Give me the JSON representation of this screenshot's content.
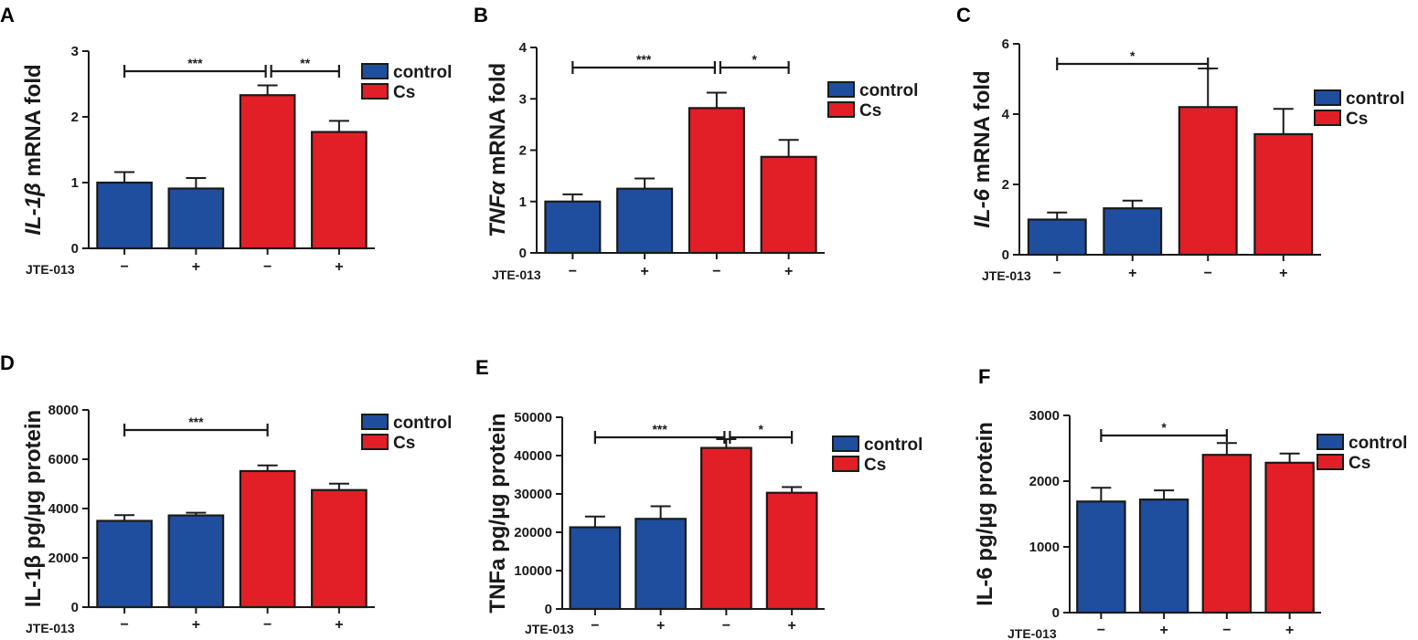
{
  "colors": {
    "control": "#1f4e9e",
    "cs": "#e21f26"
  },
  "legend": [
    "control",
    "Cs"
  ],
  "treatment_label": "JTE-013",
  "treatment_marks": [
    "−",
    "+",
    "−",
    "+"
  ],
  "chart_data": [
    {
      "panel": "A",
      "type": "bar",
      "ylabel": {
        "italic": "IL-1β",
        "rest": " mRNA fold"
      },
      "ylim": [
        0,
        3
      ],
      "yticks": [
        0,
        1,
        2,
        3
      ],
      "groups": [
        "control",
        "control",
        "Cs",
        "Cs"
      ],
      "values": [
        1.0,
        0.91,
        2.33,
        1.77
      ],
      "errors": [
        0.16,
        0.16,
        0.15,
        0.17
      ],
      "significance": [
        {
          "from": 0,
          "to": 2,
          "label": "***"
        },
        {
          "from": 2,
          "to": 3,
          "label": "**"
        }
      ]
    },
    {
      "panel": "B",
      "type": "bar",
      "ylabel": {
        "italic": "TNFα",
        "rest": " mRNA fold"
      },
      "ylim": [
        0,
        4
      ],
      "yticks": [
        0,
        1,
        2,
        3,
        4
      ],
      "groups": [
        "control",
        "control",
        "Cs",
        "Cs"
      ],
      "values": [
        1.0,
        1.25,
        2.82,
        1.87
      ],
      "errors": [
        0.14,
        0.2,
        0.3,
        0.33
      ],
      "significance": [
        {
          "from": 0,
          "to": 2,
          "label": "***"
        },
        {
          "from": 2,
          "to": 3,
          "label": "*"
        }
      ]
    },
    {
      "panel": "C",
      "type": "bar",
      "ylabel": {
        "italic": "IL-6",
        "rest": " mRNA fold"
      },
      "ylim": [
        0,
        6
      ],
      "yticks": [
        0,
        2,
        4,
        6
      ],
      "groups": [
        "control",
        "control",
        "Cs",
        "Cs"
      ],
      "values": [
        1.0,
        1.32,
        4.2,
        3.43
      ],
      "errors": [
        0.2,
        0.22,
        1.1,
        0.72
      ],
      "significance": [
        {
          "from": 0,
          "to": 2,
          "label": "*"
        }
      ]
    },
    {
      "panel": "D",
      "type": "bar",
      "ylabel": {
        "italic": "",
        "rest": "IL-1β pg/µg protein"
      },
      "ylim": [
        0,
        8000
      ],
      "yticks": [
        0,
        2000,
        4000,
        6000,
        8000
      ],
      "groups": [
        "control",
        "control",
        "Cs",
        "Cs"
      ],
      "values": [
        3500,
        3720,
        5520,
        4750
      ],
      "errors": [
        230,
        110,
        230,
        260
      ],
      "significance": [
        {
          "from": 0,
          "to": 2,
          "label": "***"
        }
      ]
    },
    {
      "panel": "E",
      "type": "bar",
      "ylabel": {
        "italic": "",
        "rest": "TNFa pg/µg protein"
      },
      "ylim": [
        0,
        50000
      ],
      "yticks": [
        0,
        10000,
        20000,
        30000,
        40000,
        50000
      ],
      "groups": [
        "control",
        "control",
        "Cs",
        "Cs"
      ],
      "values": [
        21300,
        23500,
        42000,
        30300
      ],
      "errors": [
        2800,
        3300,
        2300,
        1500
      ],
      "significance": [
        {
          "from": 0,
          "to": 2,
          "label": "***"
        },
        {
          "from": 2,
          "to": 3,
          "label": "*"
        }
      ]
    },
    {
      "panel": "F",
      "type": "bar",
      "ylabel": {
        "italic": "",
        "rest": "IL-6 pg/µg protein"
      },
      "ylim": [
        0,
        3000
      ],
      "yticks": [
        0,
        1000,
        2000,
        3000
      ],
      "groups": [
        "control",
        "control",
        "Cs",
        "Cs"
      ],
      "values": [
        1690,
        1720,
        2400,
        2280
      ],
      "errors": [
        210,
        140,
        180,
        140
      ],
      "significance": [
        {
          "from": 0,
          "to": 2,
          "label": "*"
        }
      ]
    }
  ]
}
